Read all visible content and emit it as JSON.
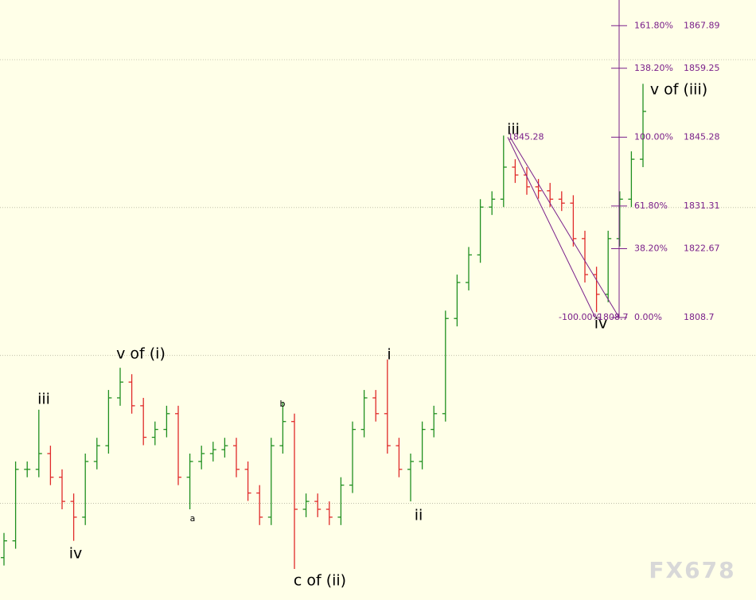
{
  "chart_data": {
    "type": "ohlc",
    "open": [
      1760.0,
      1763.4,
      1777.9,
      1777.9,
      1781.1,
      1776.3,
      1771.4,
      1768.2,
      1779.5,
      1782.7,
      1792.4,
      1795.6,
      1790.8,
      1784.4,
      1786.0,
      1789.2,
      1776.3,
      1779.5,
      1781.1,
      1781.9,
      1782.7,
      1777.9,
      1773.1,
      1768.2,
      1782.7,
      1787.6,
      1769.8,
      1771.4,
      1769.8,
      1768.2,
      1774.7,
      1786.0,
      1792.4,
      1789.2,
      1782.7,
      1777.9,
      1779.5,
      1786.0,
      1789.2,
      1808.5,
      1815.8,
      1821.4,
      1831.1,
      1832.7,
      1839.2,
      1837.6,
      1835.2,
      1834.4,
      1832.7,
      1831.9,
      1824.7,
      1817.4,
      1813.4,
      1824.7,
      1832.7,
      1840.8
    ],
    "high": [
      1765.0,
      1779.5,
      1779.5,
      1790.0,
      1782.7,
      1777.9,
      1773.0,
      1781.1,
      1784.3,
      1794.0,
      1798.5,
      1797.2,
      1792.4,
      1787.6,
      1790.8,
      1790.8,
      1781.1,
      1782.7,
      1783.5,
      1784.3,
      1784.3,
      1779.5,
      1774.7,
      1784.3,
      1791.6,
      1789.2,
      1773.0,
      1773.0,
      1771.4,
      1776.3,
      1787.6,
      1794.0,
      1794.0,
      1800.2,
      1784.3,
      1781.1,
      1787.6,
      1790.8,
      1810.1,
      1817.4,
      1823.0,
      1832.7,
      1834.3,
      1845.6,
      1840.8,
      1839.2,
      1836.8,
      1836.0,
      1834.3,
      1833.5,
      1826.3,
      1819.0,
      1826.3,
      1834.3,
      1842.4,
      1856.1
    ],
    "low": [
      1758.4,
      1761.8,
      1776.3,
      1776.3,
      1774.7,
      1769.8,
      1763.4,
      1766.6,
      1777.9,
      1781.1,
      1790.8,
      1789.2,
      1782.8,
      1782.8,
      1784.4,
      1774.7,
      1769.8,
      1777.9,
      1779.5,
      1780.3,
      1776.3,
      1771.5,
      1766.6,
      1766.6,
      1781.1,
      1757.7,
      1768.2,
      1768.2,
      1766.6,
      1766.6,
      1773.1,
      1784.4,
      1787.6,
      1781.1,
      1776.3,
      1771.4,
      1777.9,
      1784.4,
      1787.6,
      1806.9,
      1814.2,
      1819.8,
      1829.5,
      1831.1,
      1836.0,
      1833.6,
      1832.8,
      1831.1,
      1830.3,
      1823.1,
      1815.8,
      1809.8,
      1811.8,
      1823.1,
      1831.1,
      1839.2
    ],
    "close": [
      1763.4,
      1777.9,
      1777.9,
      1781.1,
      1776.3,
      1771.4,
      1768.2,
      1779.5,
      1782.7,
      1792.4,
      1795.6,
      1790.8,
      1784.4,
      1786.0,
      1789.2,
      1776.3,
      1779.5,
      1781.1,
      1781.9,
      1782.7,
      1777.9,
      1773.1,
      1768.2,
      1782.7,
      1787.6,
      1769.8,
      1771.4,
      1769.8,
      1768.2,
      1774.7,
      1786.0,
      1792.4,
      1789.2,
      1782.7,
      1777.9,
      1779.5,
      1786.0,
      1789.2,
      1808.5,
      1815.8,
      1821.4,
      1831.1,
      1832.7,
      1839.2,
      1837.6,
      1835.2,
      1834.4,
      1832.7,
      1831.9,
      1824.7,
      1817.4,
      1813.4,
      1824.7,
      1832.7,
      1840.8,
      1850.5
    ],
    "up_color": "#1f8f1f",
    "down_color": "#e02a2a",
    "ylim": [
      1751.4,
      1873.1
    ],
    "gridlines": [
      1771,
      1801,
      1831,
      1861
    ],
    "annotations": [
      {
        "text": "iii"
      },
      {
        "text": "iv"
      },
      {
        "text": "v of (i)"
      },
      {
        "text": "a"
      },
      {
        "text": "b"
      },
      {
        "text": "c of (ii)"
      },
      {
        "text": "i"
      },
      {
        "text": "ii"
      },
      {
        "text": "iii"
      },
      {
        "text": "iv"
      },
      {
        "text": "v of (iii)"
      }
    ],
    "fibonacci": {
      "color": "#7a1f8a",
      "levels": [
        {
          "ratio": "161.80%",
          "price": 1867.89
        },
        {
          "ratio": "138.20%",
          "price": 1859.25
        },
        {
          "ratio": "100.00%",
          "price": 1845.28
        },
        {
          "ratio": "61.80%",
          "price": 1831.31
        },
        {
          "ratio": "38.20%",
          "price": 1822.67
        },
        {
          "ratio": "0.00%",
          "price": 1808.7
        }
      ]
    },
    "trend": {
      "start_price": 1845.28,
      "end_ratio": "-100.00%",
      "end_price": 1808.7
    },
    "watermark": "FX678"
  }
}
